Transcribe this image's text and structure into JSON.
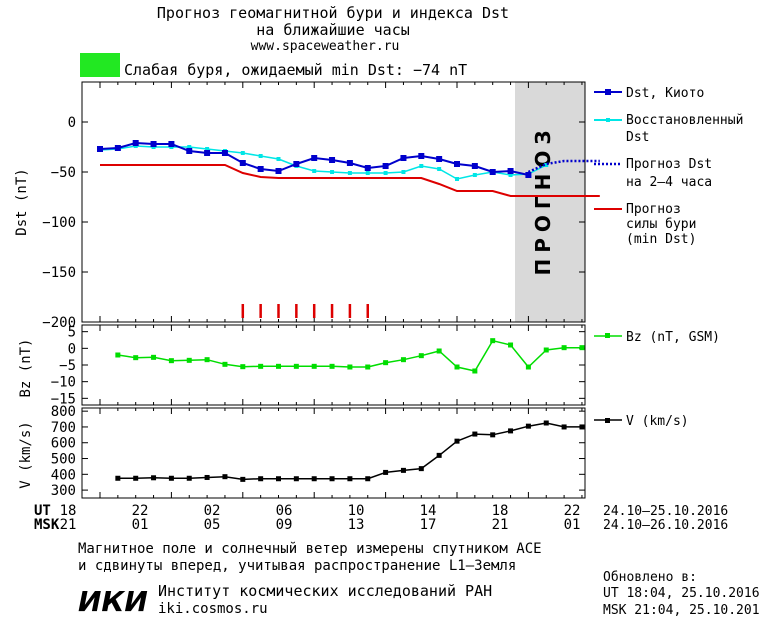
{
  "header": {
    "title_line1": "Прогноз геомагнитной бури и индекса Dst",
    "title_line2": "на ближайшие часы",
    "url": "www.spaceweather.ru",
    "status_text": "Слабая буря, ожидаемый min Dst: −74 nT",
    "status_color": "#22e822"
  },
  "forecast_band_label": "ПРОГНОЗ",
  "legend": {
    "dst_kyoto": "Dst, Киото",
    "restored_1": "Восстановленный",
    "restored_2": "Dst",
    "forecast_1": "Прогноз Dst",
    "forecast_2": "на 2–4 часа",
    "storm_1": "Прогноз",
    "storm_2": "силы бури",
    "storm_3": "(min Dst)",
    "bz": "Bz (nT, GSM)",
    "v": "V (km/s)"
  },
  "time_axis": {
    "ut_label": "UT",
    "msk_label": "MSK",
    "ut_ticks": [
      "18",
      "22",
      "02",
      "06",
      "10",
      "14",
      "18",
      "22"
    ],
    "msk_ticks": [
      "21",
      "01",
      "05",
      "09",
      "13",
      "17",
      "21",
      "01"
    ],
    "ut_range": "24.10–25.10.2016",
    "msk_range": "24.10–26.10.2016"
  },
  "footer": {
    "note_line1": "Магнитное поле и солнечный ветер измерены спутником ACE",
    "note_line2": "и сдвинуты вперед, учитывая распространение L1–Земля",
    "institute": "Институт космических исследований РАН",
    "institute_url": "iki.cosmos.ru",
    "logo_text": "ИКИ",
    "updated_label": "Обновлено в:",
    "updated_ut": "UT  18:04, 25.10.2016",
    "updated_msk": "MSK 21:04, 25.10.2016"
  },
  "chart_data": [
    {
      "type": "line",
      "ylabel": "Dst (nT)",
      "ylim": [
        -200,
        40
      ],
      "yticks": [
        "0",
        "−50",
        "−100",
        "−150",
        "−200"
      ],
      "xlim_hours_ut": [
        18,
        46
      ],
      "forecast_region_from_hour": 18,
      "series": [
        {
          "name": "Dst, Киото",
          "color": "#0000cc",
          "x": [
            0,
            1,
            2,
            3,
            4,
            5,
            6,
            7,
            8,
            9,
            10,
            11,
            12,
            13,
            14,
            15,
            16,
            17,
            18,
            19,
            20,
            21,
            22,
            23,
            24
          ],
          "y": [
            -27,
            -26,
            -21,
            -22,
            -22,
            -29,
            -31,
            -31,
            -41,
            -47,
            -49,
            -42,
            -36,
            -38,
            -41,
            -46,
            -44,
            -36,
            -34,
            -37,
            -42,
            -44,
            -50,
            -49,
            -53
          ]
        },
        {
          "name": "Восстановленный Dst",
          "color": "#00e6e6",
          "x": [
            0,
            1,
            2,
            3,
            4,
            5,
            6,
            7,
            8,
            9,
            10,
            11,
            12,
            13,
            14,
            15,
            16,
            17,
            18,
            19,
            20,
            21,
            22,
            23,
            24,
            25
          ],
          "y": [
            -28,
            -27,
            -24,
            -25,
            -25,
            -25,
            -27,
            -29,
            -31,
            -34,
            -37,
            -44,
            -49,
            -50,
            -51,
            -51,
            -51,
            -50,
            -44,
            -47,
            -57,
            -53,
            -50,
            -53,
            -52,
            -43
          ]
        },
        {
          "name": "Прогноз Dst на 2–4 часа",
          "color": "#0000cc",
          "x": [
            24,
            25,
            26,
            27,
            28
          ],
          "y": [
            -50,
            -42,
            -39,
            -39,
            -39
          ]
        },
        {
          "name": "Прогноз силы бури (min Dst)",
          "color": "#dd0000",
          "x": [
            0,
            1,
            2,
            3,
            4,
            5,
            6,
            7,
            8,
            9,
            10,
            11,
            12,
            13,
            14,
            15,
            16,
            17,
            18,
            19,
            20,
            21,
            22,
            23,
            24,
            25,
            26,
            27,
            28
          ],
          "y": [
            -43,
            -43,
            -43,
            -43,
            -43,
            -43,
            -43,
            -43,
            -51,
            -55,
            -56,
            -56,
            -56,
            -56,
            -56,
            -56,
            -56,
            -56,
            -56,
            -62,
            -69,
            -69,
            -69,
            -74,
            -74,
            -74,
            -74,
            -74,
            -74
          ]
        }
      ],
      "storm_markers_x": [
        8,
        9,
        10,
        11,
        12,
        13,
        14,
        15
      ]
    },
    {
      "type": "line",
      "ylabel": "Bz (nT)",
      "ylim": [
        -17,
        7
      ],
      "yticks": [
        "5",
        "0",
        "−5",
        "−10",
        "−15"
      ],
      "series": [
        {
          "name": "Bz (nT, GSM)",
          "color": "#00dd00",
          "x": [
            1,
            2,
            3,
            4,
            5,
            6,
            7,
            8,
            9,
            10,
            11,
            12,
            13,
            14,
            15,
            16,
            17,
            18,
            19,
            20,
            21,
            22,
            23,
            24,
            25,
            26,
            27
          ],
          "y": [
            -2,
            -2.8,
            -2.7,
            -3.7,
            -3.6,
            -3.4,
            -4.8,
            -5.5,
            -5.4,
            -5.4,
            -5.4,
            -5.4,
            -5.4,
            -5.6,
            -5.6,
            -4.3,
            -3.4,
            -2.2,
            -0.8,
            -5.6,
            -6.8,
            2.3,
            1,
            -5.6,
            -0.5,
            0.2,
            0.2
          ]
        }
      ]
    },
    {
      "type": "line",
      "ylabel": "V (km/s)",
      "ylim": [
        250,
        820
      ],
      "yticks": [
        "800",
        "700",
        "600",
        "500",
        "400",
        "300"
      ],
      "series": [
        {
          "name": "V (km/s)",
          "color": "#000000",
          "x": [
            1,
            2,
            3,
            4,
            5,
            6,
            7,
            8,
            9,
            10,
            11,
            12,
            13,
            14,
            15,
            16,
            17,
            18,
            19,
            20,
            21,
            22,
            23,
            24,
            25,
            26,
            27
          ],
          "y": [
            375,
            375,
            378,
            375,
            375,
            380,
            385,
            368,
            372,
            372,
            372,
            372,
            372,
            372,
            372,
            412,
            425,
            436,
            520,
            610,
            655,
            650,
            675,
            705,
            725,
            700,
            700
          ]
        }
      ]
    }
  ]
}
